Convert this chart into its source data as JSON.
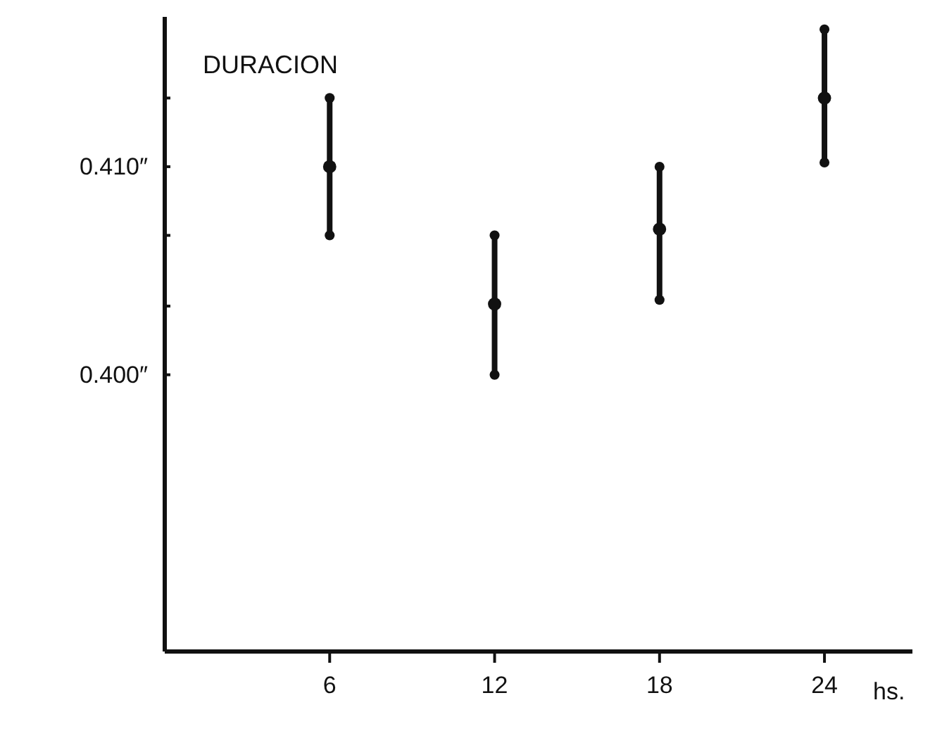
{
  "chart_data": {
    "type": "scatter",
    "title": "DURACION",
    "xlabel": "hs.",
    "x": [
      6,
      12,
      18,
      24
    ],
    "values": [
      0.41,
      0.4034,
      0.407,
      0.4133
    ],
    "errors": [
      [
        0.4067,
        0.4133
      ],
      [
        0.4,
        0.4067
      ],
      [
        0.4036,
        0.41
      ],
      [
        0.4102,
        0.4166
      ]
    ],
    "color": "#111111",
    "marker": "circle",
    "grid": false,
    "xlim": [
      0,
      27.2
    ],
    "xticks": [
      6,
      12,
      18,
      24
    ],
    "ylim": [
      0.3867,
      0.4172
    ],
    "yticks": [
      {
        "value": 0.4,
        "label": "0.400″"
      },
      {
        "value": 0.4033,
        "label": null
      },
      {
        "value": 0.4067,
        "label": null
      },
      {
        "value": 0.41,
        "label": "0.410″"
      },
      {
        "value": 0.4133,
        "label": null
      }
    ]
  }
}
